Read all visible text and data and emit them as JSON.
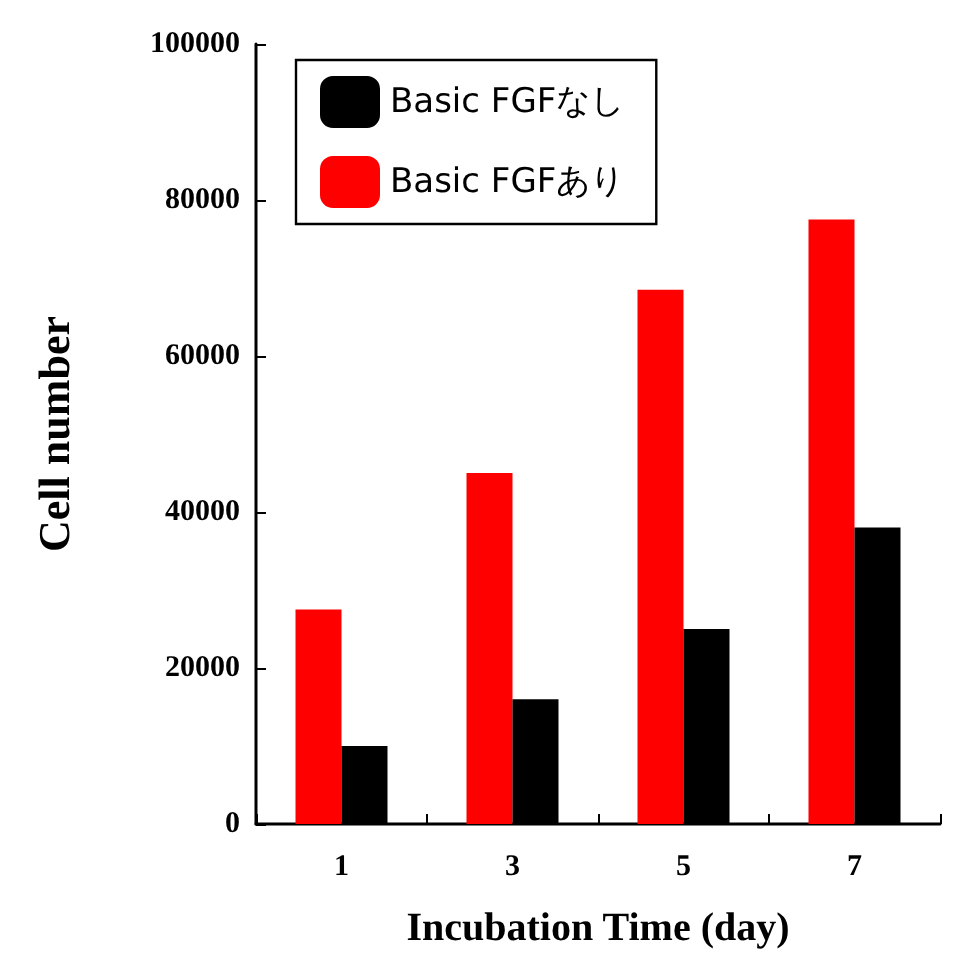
{
  "chart_data": {
    "type": "bar",
    "xlabel": "Incubation Time (day)",
    "ylabel": "Cell number",
    "categories": [
      "1",
      "3",
      "5",
      "7"
    ],
    "series": [
      {
        "name": "Basic FGFなし",
        "color": "#000000",
        "values": [
          10000,
          16000,
          25000,
          38000
        ]
      },
      {
        "name": "Basic FGFあり",
        "color": "#ff0000",
        "values": [
          27500,
          45000,
          68500,
          77500
        ]
      }
    ],
    "ylim": [
      0,
      100000
    ],
    "yticks": [
      0,
      20000,
      40000,
      60000,
      80000,
      100000
    ],
    "grid": false,
    "legend": "top left"
  }
}
